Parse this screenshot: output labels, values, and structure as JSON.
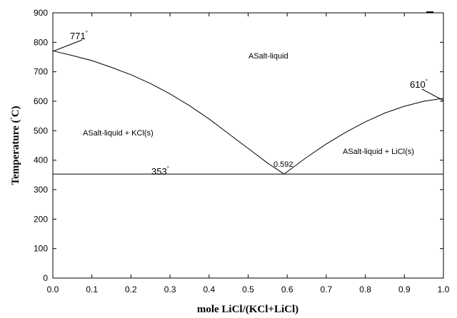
{
  "chart_data": {
    "type": "line",
    "xlabel": "mole LiCl/(KCl+LiCl)",
    "ylabel_main": "Temperature (",
    "ylabel_deg": "°",
    "ylabel_unit": "C)",
    "xlim": [
      0.0,
      1.0
    ],
    "ylim": [
      0,
      900
    ],
    "x_ticks": [
      "0.0",
      "0.1",
      "0.2",
      "0.3",
      "0.4",
      "0.5",
      "0.6",
      "0.7",
      "0.8",
      "0.9",
      "1.0"
    ],
    "y_ticks": [
      "0",
      "100",
      "200",
      "300",
      "400",
      "500",
      "600",
      "700",
      "800",
      "900"
    ],
    "series": [
      {
        "x": [
          0.0,
          0.05,
          0.1,
          0.15,
          0.2,
          0.25,
          0.3,
          0.35,
          0.4,
          0.45,
          0.5,
          0.55,
          0.592
        ],
        "y": [
          771,
          755,
          738,
          715,
          690,
          660,
          625,
          585,
          540,
          490,
          440,
          390,
          353
        ]
      },
      {
        "x": [
          0.592,
          0.65,
          0.7,
          0.75,
          0.8,
          0.85,
          0.9,
          0.95,
          1.0
        ],
        "y": [
          353,
          410,
          455,
          495,
          530,
          560,
          583,
          600,
          610
        ]
      },
      {
        "x": [
          0.0,
          1.0
        ],
        "y": [
          353,
          353
        ]
      }
    ],
    "annotations": {
      "liquid": "ASalt-liquid",
      "kcl_region": "ASalt-liquid + KCl(s)",
      "licl_region": "ASalt-liquid + LiCl(s)",
      "eutectic_x": "0.592",
      "kcl_mp": "771",
      "licl_mp": "610",
      "eutectic_t": "353",
      "degree": "°"
    }
  }
}
